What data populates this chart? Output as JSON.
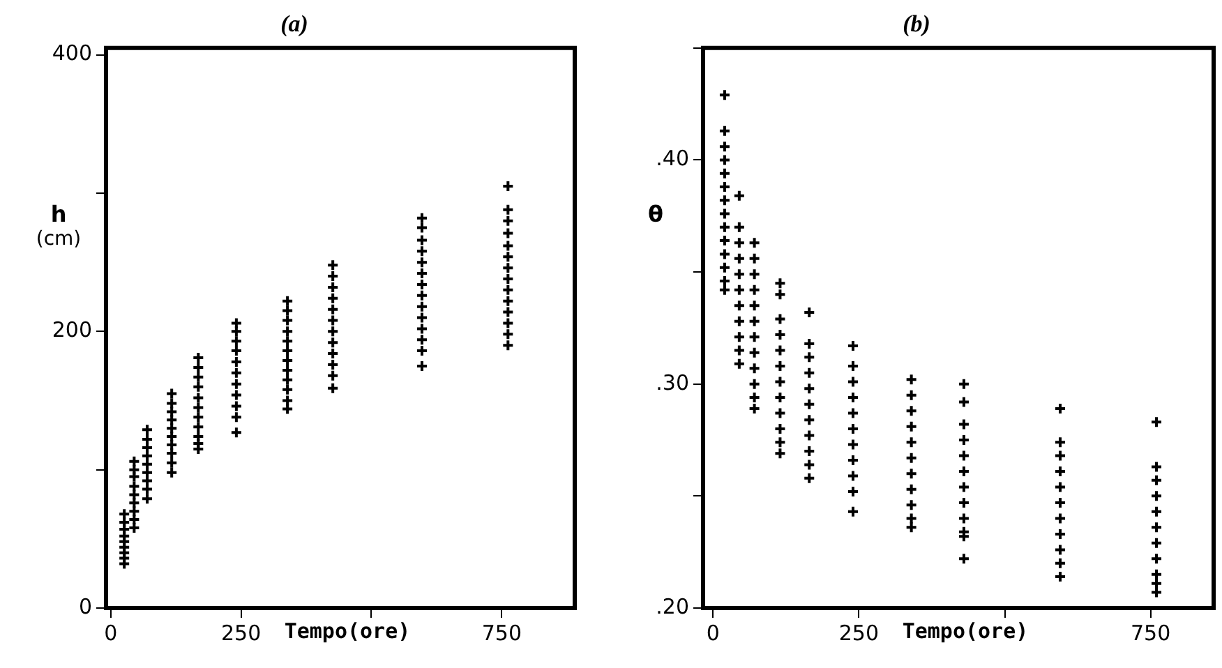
{
  "chart_data": [
    {
      "type": "scatter",
      "title": "(a)",
      "xlabel": "Tempo(ore)",
      "ylabel": "h\n(cm)",
      "marker": "cross",
      "color": "#000000",
      "xlim": [
        -9,
        890
      ],
      "xticks": [
        0,
        250,
        {
          "value": 500,
          "label": null
        },
        750
      ],
      "ylim": [
        0,
        405
      ],
      "yticks": [
        0,
        {
          "value": 100,
          "label": null
        },
        200,
        {
          "value": 300,
          "label": null
        },
        400
      ],
      "x": [
        26,
        26,
        26,
        26,
        26,
        26,
        26,
        26,
        26,
        45,
        45,
        45,
        45,
        45,
        45,
        45,
        45,
        45,
        70,
        70,
        70,
        70,
        70,
        70,
        70,
        70,
        70,
        117,
        117,
        117,
        117,
        117,
        117,
        117,
        117,
        117,
        117,
        168,
        168,
        168,
        168,
        168,
        168,
        168,
        168,
        168,
        168,
        168,
        241,
        241,
        241,
        241,
        241,
        241,
        241,
        241,
        241,
        241,
        241,
        339,
        339,
        339,
        339,
        339,
        339,
        339,
        339,
        339,
        339,
        339,
        339,
        426,
        426,
        426,
        426,
        426,
        426,
        426,
        426,
        426,
        426,
        426,
        426,
        597,
        597,
        597,
        597,
        597,
        597,
        597,
        597,
        597,
        597,
        597,
        597,
        597,
        597,
        762,
        762,
        762,
        762,
        762,
        762,
        762,
        762,
        762,
        762,
        762,
        762,
        762,
        762
      ],
      "values": [
        68,
        62,
        57,
        52,
        48,
        44,
        40,
        36,
        32,
        106,
        100,
        95,
        88,
        82,
        76,
        70,
        64,
        58,
        129,
        122,
        116,
        110,
        104,
        98,
        92,
        86,
        79,
        155,
        148,
        142,
        136,
        130,
        124,
        118,
        112,
        105,
        98,
        181,
        174,
        167,
        160,
        152,
        145,
        138,
        131,
        124,
        119,
        115,
        206,
        200,
        193,
        186,
        178,
        170,
        162,
        154,
        146,
        138,
        127,
        222,
        215,
        208,
        200,
        193,
        186,
        179,
        172,
        165,
        158,
        150,
        144,
        248,
        240,
        232,
        224,
        216,
        208,
        200,
        192,
        184,
        176,
        168,
        159,
        282,
        275,
        266,
        258,
        250,
        242,
        234,
        226,
        218,
        210,
        202,
        194,
        186,
        175,
        305,
        288,
        280,
        271,
        262,
        254,
        246,
        238,
        230,
        222,
        214,
        206,
        198,
        190
      ]
    },
    {
      "type": "scatter",
      "title": "(b)",
      "xlabel": "Tempo(ore)",
      "ylabel": "θ",
      "marker": "cross",
      "color": "#000000",
      "xlim": [
        -17,
        858
      ],
      "xticks": [
        0,
        250,
        {
          "value": 500,
          "label": null
        },
        750
      ],
      "ylim": [
        0.2,
        0.45
      ],
      "yticks": [
        {
          "value": 0.2,
          "label": ".20"
        },
        {
          "value": 0.25,
          "label": null
        },
        {
          "value": 0.3,
          "label": ".30"
        },
        {
          "value": 0.35,
          "label": null
        },
        {
          "value": 0.4,
          "label": ".40"
        },
        {
          "value": 0.45,
          "label": null
        }
      ],
      "x": [
        20,
        20,
        20,
        20,
        20,
        20,
        20,
        20,
        20,
        20,
        20,
        20,
        20,
        20,
        45,
        45,
        45,
        45,
        45,
        45,
        45,
        45,
        45,
        45,
        45,
        71,
        71,
        71,
        71,
        71,
        71,
        71,
        71,
        71,
        71,
        71,
        71,
        115,
        115,
        115,
        115,
        115,
        115,
        115,
        115,
        115,
        115,
        115,
        115,
        165,
        165,
        165,
        165,
        165,
        165,
        165,
        165,
        165,
        165,
        165,
        240,
        240,
        240,
        240,
        240,
        240,
        240,
        240,
        240,
        240,
        240,
        340,
        340,
        340,
        340,
        340,
        340,
        340,
        340,
        340,
        340,
        340,
        430,
        430,
        430,
        430,
        430,
        430,
        430,
        430,
        430,
        430,
        430,
        430,
        595,
        595,
        595,
        595,
        595,
        595,
        595,
        595,
        595,
        595,
        595,
        760,
        760,
        760,
        760,
        760,
        760,
        760,
        760,
        760,
        760,
        760
      ],
      "values": [
        0.429,
        0.413,
        0.406,
        0.4,
        0.394,
        0.388,
        0.382,
        0.376,
        0.37,
        0.364,
        0.358,
        0.352,
        0.346,
        0.342,
        0.384,
        0.37,
        0.363,
        0.356,
        0.349,
        0.342,
        0.335,
        0.328,
        0.321,
        0.315,
        0.309,
        0.363,
        0.356,
        0.349,
        0.342,
        0.335,
        0.328,
        0.321,
        0.314,
        0.307,
        0.3,
        0.294,
        0.289,
        0.345,
        0.34,
        0.329,
        0.322,
        0.315,
        0.308,
        0.301,
        0.294,
        0.287,
        0.28,
        0.274,
        0.269,
        0.332,
        0.318,
        0.312,
        0.305,
        0.298,
        0.291,
        0.284,
        0.277,
        0.27,
        0.264,
        0.258,
        0.317,
        0.308,
        0.301,
        0.294,
        0.287,
        0.28,
        0.273,
        0.266,
        0.259,
        0.252,
        0.243,
        0.302,
        0.295,
        0.288,
        0.281,
        0.274,
        0.267,
        0.26,
        0.253,
        0.246,
        0.24,
        0.236,
        0.3,
        0.292,
        0.282,
        0.275,
        0.268,
        0.261,
        0.254,
        0.247,
        0.24,
        0.234,
        0.232,
        0.222,
        0.289,
        0.274,
        0.268,
        0.261,
        0.254,
        0.247,
        0.24,
        0.233,
        0.226,
        0.22,
        0.214,
        0.283,
        0.263,
        0.257,
        0.25,
        0.243,
        0.236,
        0.229,
        0.222,
        0.215,
        0.211,
        0.207
      ]
    }
  ]
}
